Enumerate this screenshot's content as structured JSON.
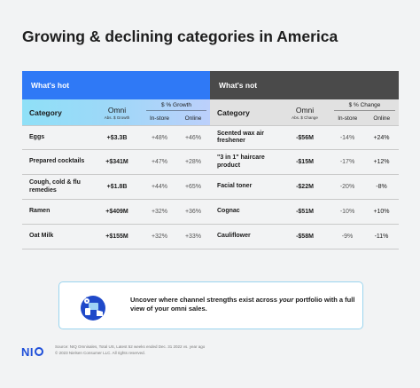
{
  "title": "Growing & declining categories in America",
  "hot": {
    "banner": "What's hot",
    "col_category": "Category",
    "col_omni": "Omni",
    "col_omni_sub": "Abs. $ Growth",
    "group_label": "$ % Growth",
    "col_instore": "In-store",
    "col_online": "Online",
    "rows": [
      {
        "category": "Eggs",
        "omni": "+$3.3B",
        "instore": "+48%",
        "online": "+46%"
      },
      {
        "category": "Prepared cocktails",
        "omni": "+$341M",
        "instore": "+47%",
        "online": "+28%"
      },
      {
        "category": "Cough, cold & flu remedies",
        "omni": "+$1.8B",
        "instore": "+44%",
        "online": "+65%"
      },
      {
        "category": "Ramen",
        "omni": "+$409M",
        "instore": "+32%",
        "online": "+36%"
      },
      {
        "category": "Oat Milk",
        "omni": "+$155M",
        "instore": "+32%",
        "online": "+33%"
      }
    ]
  },
  "not": {
    "banner": "What's not",
    "col_category": "Category",
    "col_omni": "Omni",
    "col_omni_sub": "Abs. $ Change",
    "group_label": "$ % Change",
    "col_instore": "In-store",
    "col_online": "Online",
    "rows": [
      {
        "category": "Scented wax air freshener",
        "omni": "-$56M",
        "instore": "-14%",
        "online": "+24%"
      },
      {
        "category": "\"3 in 1\" haircare product",
        "omni": "-$15M",
        "instore": "-17%",
        "online": "+12%"
      },
      {
        "category": "Facial toner",
        "omni": "-$22M",
        "instore": "-20%",
        "online": "-8%"
      },
      {
        "category": "Cognac",
        "omni": "-$51M",
        "instore": "-10%",
        "online": "+10%"
      },
      {
        "category": "Cauliflower",
        "omni": "-$58M",
        "instore": "-9%",
        "online": "-11%"
      }
    ]
  },
  "callout": {
    "text_before": "Uncover where channel strengths exist across ",
    "text_emph": "your",
    "text_after": " portfolio with a full view of your omni sales."
  },
  "footer": {
    "logo": "NI",
    "source_line1": "Source: NIQ Omnisales, Total US, Latest 52 weeks ended Dec. 31 2022 vs. year ago",
    "source_line2": "© 2023 Nielsen Consumer LLC. All rights reserved."
  },
  "colors": {
    "hot_banner": "#2f79f6",
    "not_banner": "#4a4a4a",
    "brand": "#1f4fd9"
  }
}
